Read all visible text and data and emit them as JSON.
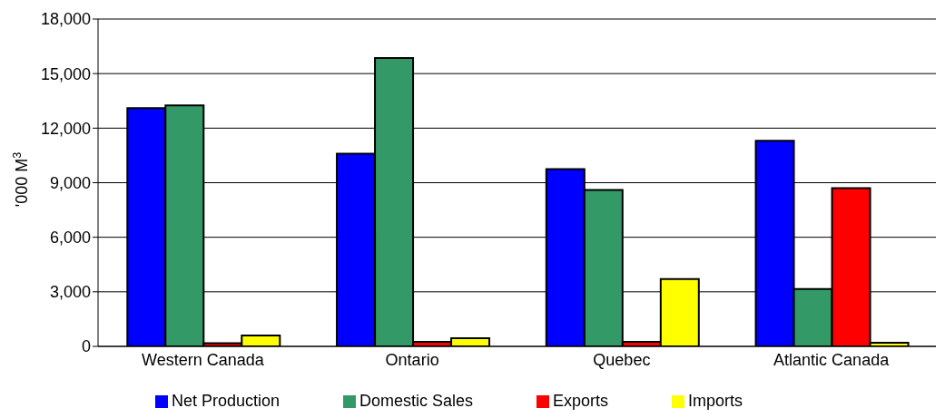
{
  "chart_data": {
    "type": "bar",
    "ylabel": "'000 M$^{3}$",
    "categories": [
      "Western Canada",
      "Ontario",
      "Quebec",
      "Atlantic Canada"
    ],
    "series": [
      {
        "name": "Net Production",
        "color": "#0000ff",
        "values": [
          13100,
          10600,
          9750,
          11300
        ]
      },
      {
        "name": "Domestic Sales",
        "color": "#339966",
        "values": [
          13250,
          15850,
          8600,
          3150
        ]
      },
      {
        "name": "Exports",
        "color": "#ff0000",
        "values": [
          180,
          250,
          250,
          8700
        ]
      },
      {
        "name": "Imports",
        "color": "#ffff00",
        "values": [
          600,
          450,
          3700,
          200
        ]
      }
    ],
    "ylim": [
      0,
      18000
    ],
    "yticks": [
      {
        "value": 0,
        "label": "0"
      },
      {
        "value": 3000,
        "label": "3,000"
      },
      {
        "value": 6000,
        "label": "6,000"
      },
      {
        "value": 9000,
        "label": "9,000"
      },
      {
        "value": 12000,
        "label": "12,000"
      },
      {
        "value": 15000,
        "label": "15,000"
      },
      {
        "value": 18000,
        "label": "18,000"
      }
    ],
    "grid": "y",
    "legend": "bottom"
  }
}
